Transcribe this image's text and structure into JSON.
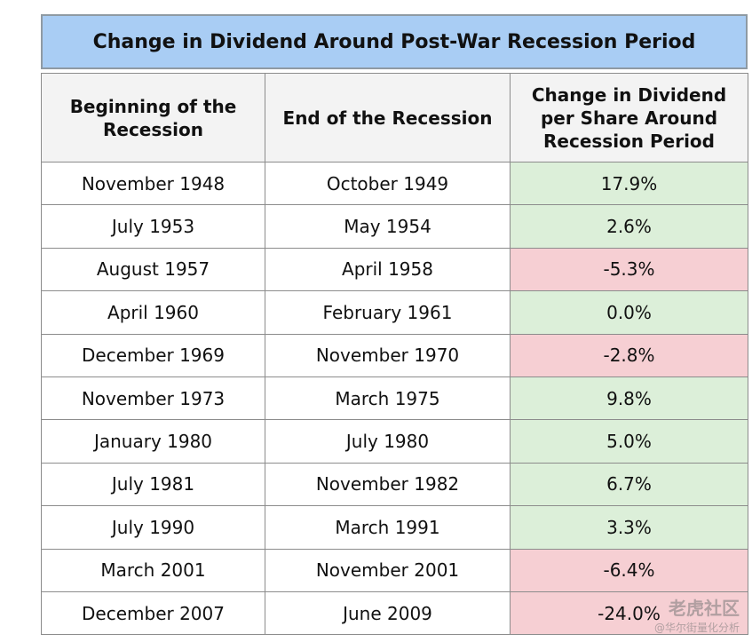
{
  "chart_data": {
    "type": "table",
    "title": "Change in Dividend Around Post-War Recession Period",
    "columns": [
      "Beginning of the Recession",
      "End of the Recession",
      "Change in Dividend per Share Around Recession Period"
    ],
    "rows": [
      {
        "begin": "November 1948",
        "end": "October 1949",
        "change": "17.9%",
        "value": 17.9
      },
      {
        "begin": "July 1953",
        "end": "May 1954",
        "change": "2.6%",
        "value": 2.6
      },
      {
        "begin": "August 1957",
        "end": "April 1958",
        "change": "-5.3%",
        "value": -5.3
      },
      {
        "begin": "April 1960",
        "end": "February 1961",
        "change": "0.0%",
        "value": 0.0
      },
      {
        "begin": "December 1969",
        "end": "November 1970",
        "change": "-2.8%",
        "value": -2.8
      },
      {
        "begin": "November 1973",
        "end": "March 1975",
        "change": "9.8%",
        "value": 9.8
      },
      {
        "begin": "January 1980",
        "end": "July 1980",
        "change": "5.0%",
        "value": 5.0
      },
      {
        "begin": "July 1981",
        "end": "November 1982",
        "change": "6.7%",
        "value": 6.7
      },
      {
        "begin": "July 1990",
        "end": "March 1991",
        "change": "3.3%",
        "value": 3.3
      },
      {
        "begin": "March 2001",
        "end": "November 2001",
        "change": "-6.4%",
        "value": -6.4
      },
      {
        "begin": "December 2007",
        "end": "June 2009",
        "change": "-24.0%",
        "value": -24.0
      }
    ],
    "colors": {
      "title_bg": "#a9cdf4",
      "positive_bg": "#dcefd9",
      "negative_bg": "#f6cfd3",
      "header_bg": "#f3f3f3"
    }
  },
  "watermark": {
    "main": "老虎社区",
    "sub": "@华尔街量化分析"
  }
}
